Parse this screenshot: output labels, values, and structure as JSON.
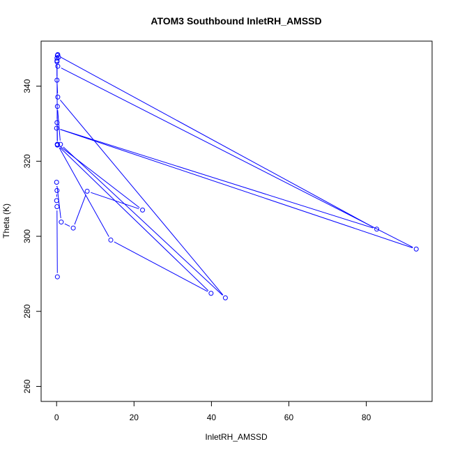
{
  "chart_data": {
    "type": "line",
    "title": "ATOM3 Southbound InletRH_AMSSD",
    "xlabel": "InletRH_AMSSD",
    "ylabel": "Theta (K)",
    "xlim": [
      -4,
      97
    ],
    "ylim": [
      256,
      352
    ],
    "x_ticks": [
      0,
      20,
      40,
      60,
      80
    ],
    "y_ticks": [
      260,
      280,
      300,
      320,
      340
    ],
    "grid": false,
    "legend": "none",
    "series": [
      {
        "color": "#0000ff",
        "marker": "open-circle",
        "x": [
          0.2,
          0.1,
          0.0,
          0.1,
          0.0,
          1.2,
          4.3,
          7.9,
          22.2,
          0.2,
          0.1,
          0.2,
          1.0,
          43.6,
          0.3,
          0.1,
          0.1,
          0.1,
          0.3,
          92.9,
          0.0,
          82.7,
          0.2,
          0.3,
          0.5,
          0.1,
          0.2,
          39.9,
          14.0,
          0.2,
          0.2
        ],
        "y": [
          289.2,
          307.9,
          309.5,
          312.2,
          314.4,
          303.8,
          302.2,
          312.0,
          307.0,
          324.5,
          330.3,
          334.6,
          324.5,
          283.6,
          337.1,
          341.6,
          346.8,
          347.5,
          345.3,
          296.6,
          328.8,
          301.9,
          348.2,
          348.4,
          347.7,
          346.5,
          324.3,
          284.8,
          299.0,
          324.5,
          324.4
        ]
      }
    ]
  }
}
